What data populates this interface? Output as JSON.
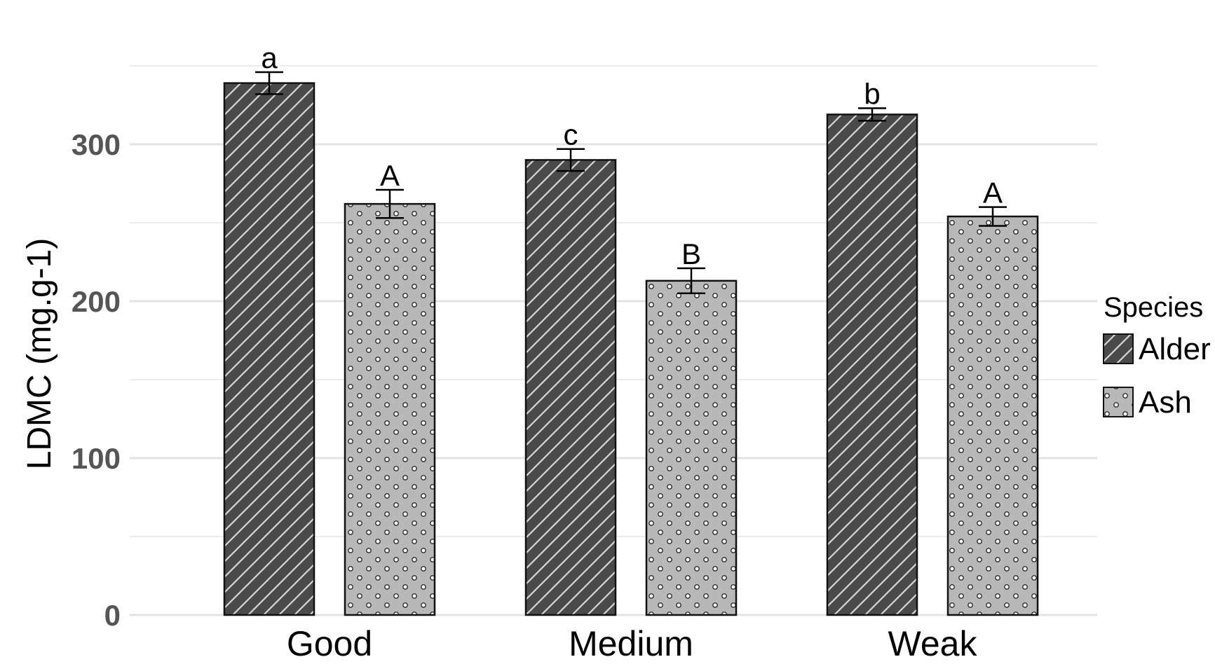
{
  "chart_data": {
    "type": "bar",
    "title": "",
    "xlabel": "",
    "ylabel": "LDMC (mg.g-1)",
    "ylim": [
      0,
      360
    ],
    "yticks": [
      "0",
      "100",
      "200",
      "300"
    ],
    "grid": true,
    "categories": [
      "Good",
      "Medium",
      "Weak"
    ],
    "legend": {
      "title": "Species",
      "position": "right"
    },
    "series": [
      {
        "name": "Alder",
        "pattern": "diagonal-hatch",
        "color": "#4a4a4a",
        "values": [
          339,
          290,
          319
        ],
        "errors": [
          7,
          7,
          4
        ],
        "letters": [
          "a",
          "c",
          "b"
        ]
      },
      {
        "name": "Ash",
        "pattern": "dots",
        "color": "#b8b8b8",
        "values": [
          262,
          213,
          254
        ],
        "errors": [
          9,
          8,
          6
        ],
        "letters": [
          "A",
          "B",
          "A"
        ]
      }
    ]
  }
}
